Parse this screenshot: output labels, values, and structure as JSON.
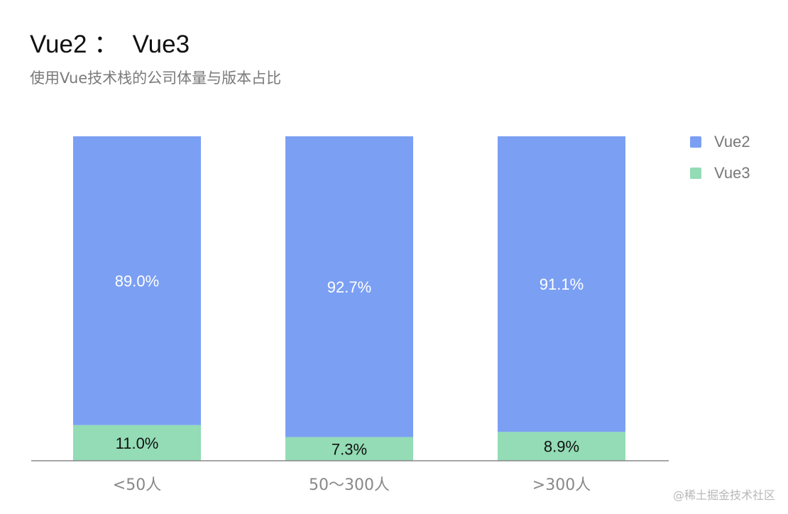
{
  "title": "Vue2 ：  Vue3",
  "subtitle": "使用Vue技术栈的公司体量与版本占比",
  "watermark": "@稀土掘金技术社区",
  "chart_data": {
    "type": "bar",
    "stacked": true,
    "categories": [
      "<50人",
      "50～300人",
      ">300人"
    ],
    "series": [
      {
        "name": "Vue2",
        "values": [
          89.0,
          92.7,
          91.1
        ],
        "labels": [
          "89.0%",
          "92.7%",
          "91.1%"
        ],
        "color": "#7b9ff3",
        "label_color": "#ffffff"
      },
      {
        "name": "Vue3",
        "values": [
          11.0,
          7.3,
          8.9
        ],
        "labels": [
          "11.0%",
          "7.3%",
          "8.9%"
        ],
        "color": "#93dcb5",
        "label_color": "#111111"
      }
    ],
    "ylim": [
      0,
      100
    ],
    "grid": false,
    "legend_position": "right"
  }
}
